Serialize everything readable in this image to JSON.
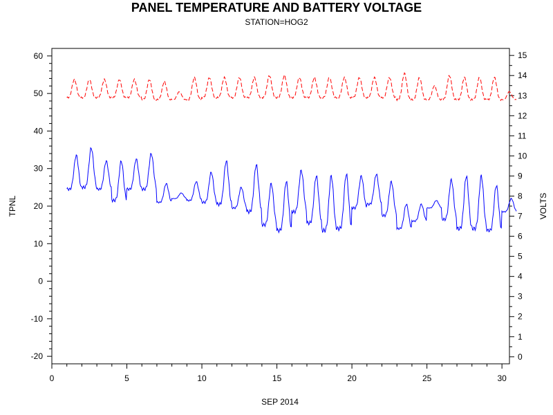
{
  "chart_data": {
    "type": "line",
    "title": "PANEL TEMPERATURE AND BATTERY VOLTAGE",
    "subtitle": "STATION=HOG2",
    "xlabel": "SEP 2014",
    "ylabel_left": "TPNL",
    "ylabel_right": "VOLTS",
    "xlim": [
      0,
      30.5
    ],
    "ylim_left": [
      -22,
      62
    ],
    "ylim_right": [
      -0.35,
      15.35
    ],
    "x_ticks": [
      0,
      5,
      10,
      15,
      20,
      25,
      30
    ],
    "y_left_ticks": [
      -20,
      -10,
      0,
      10,
      20,
      30,
      40,
      50,
      60
    ],
    "y_right_ticks": [
      0,
      1,
      2,
      3,
      4,
      5,
      6,
      7,
      8,
      9,
      10,
      11,
      12,
      13,
      14,
      15
    ],
    "grid": false,
    "colors": {
      "tpnl": "#0000ff",
      "volts": "#ff0000",
      "axis": "#000000"
    },
    "tpnl_daily": [
      {
        "day": 1,
        "min": 24.5,
        "max": 33.5
      },
      {
        "day": 2,
        "min": 25.0,
        "max": 35.5
      },
      {
        "day": 3,
        "min": 24.5,
        "max": 32.0
      },
      {
        "day": 4,
        "min": 21.5,
        "max": 32.0
      },
      {
        "day": 5,
        "min": 24.5,
        "max": 32.5
      },
      {
        "day": 6,
        "min": 24.5,
        "max": 34.0
      },
      {
        "day": 7,
        "min": 21.0,
        "max": 26.0
      },
      {
        "day": 8,
        "min": 22.0,
        "max": 23.5
      },
      {
        "day": 9,
        "min": 21.5,
        "max": 26.5
      },
      {
        "day": 10,
        "min": 21.0,
        "max": 29.0
      },
      {
        "day": 11,
        "min": 20.5,
        "max": 32.0
      },
      {
        "day": 12,
        "min": 19.5,
        "max": 25.0
      },
      {
        "day": 13,
        "min": 18.5,
        "max": 31.0
      },
      {
        "day": 14,
        "min": 15.0,
        "max": 26.0
      },
      {
        "day": 15,
        "min": 13.5,
        "max": 26.5
      },
      {
        "day": 16,
        "min": 18.5,
        "max": 29.5
      },
      {
        "day": 17,
        "min": 15.5,
        "max": 28.0
      },
      {
        "day": 18,
        "min": 13.5,
        "max": 28.0
      },
      {
        "day": 19,
        "min": 14.0,
        "max": 28.5
      },
      {
        "day": 20,
        "min": 19.5,
        "max": 28.0
      },
      {
        "day": 21,
        "min": 20.5,
        "max": 28.5
      },
      {
        "day": 22,
        "min": 17.5,
        "max": 26.5
      },
      {
        "day": 23,
        "min": 14.0,
        "max": 20.5
      },
      {
        "day": 24,
        "min": 16.0,
        "max": 20.5
      },
      {
        "day": 25,
        "min": 19.5,
        "max": 21.5
      },
      {
        "day": 26,
        "min": 16.5,
        "max": 27.0
      },
      {
        "day": 27,
        "min": 14.0,
        "max": 28.0
      },
      {
        "day": 28,
        "min": 14.0,
        "max": 28.0
      },
      {
        "day": 29,
        "min": 13.5,
        "max": 25.5
      },
      {
        "day": 30,
        "min": 18.5,
        "max": 22.0
      }
    ],
    "volts_daily": [
      {
        "day": 1,
        "min": 12.9,
        "max": 13.8
      },
      {
        "day": 2,
        "min": 12.9,
        "max": 13.8
      },
      {
        "day": 3,
        "min": 12.9,
        "max": 13.8
      },
      {
        "day": 4,
        "min": 12.9,
        "max": 13.8
      },
      {
        "day": 5,
        "min": 12.9,
        "max": 13.8
      },
      {
        "day": 6,
        "min": 12.8,
        "max": 13.8
      },
      {
        "day": 7,
        "min": 12.8,
        "max": 13.7
      },
      {
        "day": 8,
        "min": 12.8,
        "max": 13.2
      },
      {
        "day": 9,
        "min": 12.8,
        "max": 13.9
      },
      {
        "day": 10,
        "min": 12.9,
        "max": 13.9
      },
      {
        "day": 11,
        "min": 12.9,
        "max": 13.9
      },
      {
        "day": 12,
        "min": 12.9,
        "max": 13.9
      },
      {
        "day": 13,
        "min": 12.9,
        "max": 13.9
      },
      {
        "day": 14,
        "min": 12.9,
        "max": 14.0
      },
      {
        "day": 15,
        "min": 12.9,
        "max": 14.0
      },
      {
        "day": 16,
        "min": 12.9,
        "max": 13.9
      },
      {
        "day": 17,
        "min": 12.9,
        "max": 13.9
      },
      {
        "day": 18,
        "min": 12.9,
        "max": 13.9
      },
      {
        "day": 19,
        "min": 12.9,
        "max": 13.9
      },
      {
        "day": 20,
        "min": 12.9,
        "max": 13.9
      },
      {
        "day": 21,
        "min": 12.9,
        "max": 13.9
      },
      {
        "day": 22,
        "min": 12.9,
        "max": 13.9
      },
      {
        "day": 23,
        "min": 12.8,
        "max": 14.1
      },
      {
        "day": 24,
        "min": 12.8,
        "max": 13.9
      },
      {
        "day": 25,
        "min": 12.8,
        "max": 13.5
      },
      {
        "day": 26,
        "min": 12.8,
        "max": 14.0
      },
      {
        "day": 27,
        "min": 12.8,
        "max": 13.9
      },
      {
        "day": 28,
        "min": 12.8,
        "max": 13.9
      },
      {
        "day": 29,
        "min": 12.8,
        "max": 13.9
      },
      {
        "day": 30,
        "min": 12.8,
        "max": 13.2
      }
    ]
  }
}
